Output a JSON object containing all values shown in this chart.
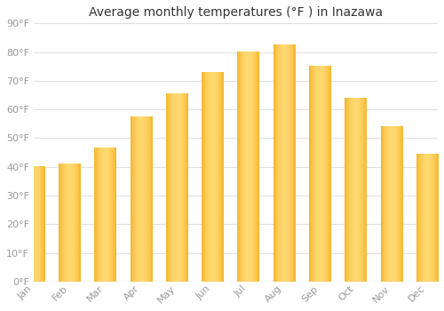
{
  "title": "Average monthly temperatures (°F ) in Inazawa",
  "months": [
    "Jan",
    "Feb",
    "Mar",
    "Apr",
    "May",
    "Jun",
    "Jul",
    "Aug",
    "Sep",
    "Oct",
    "Nov",
    "Dec"
  ],
  "values": [
    40,
    41,
    46.5,
    57.5,
    65.5,
    73,
    80,
    82.5,
    75,
    64,
    54,
    44.5
  ],
  "bar_color_dark": "#F0A000",
  "bar_color_mid": "#FFB820",
  "bar_color_light": "#FFD870",
  "ylim": [
    0,
    90
  ],
  "yticks": [
    0,
    10,
    20,
    30,
    40,
    50,
    60,
    70,
    80,
    90
  ],
  "background_color": "#FFFFFF",
  "plot_bg_color": "#FFFFFF",
  "grid_color": "#E0E0E0",
  "title_fontsize": 10,
  "tick_fontsize": 8,
  "tick_color": "#999999",
  "bar_width": 0.6
}
